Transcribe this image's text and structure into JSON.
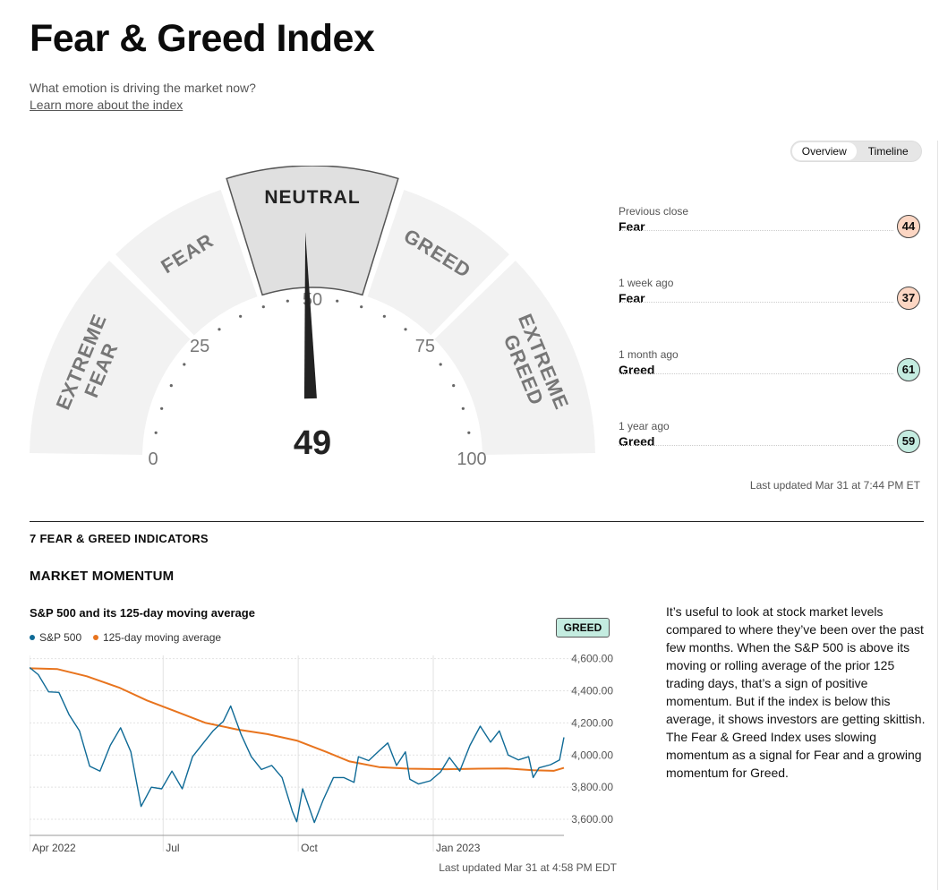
{
  "header": {
    "title": "Fear & Greed Index",
    "subtitle": "What emotion is driving the market now?",
    "learn_link": "Learn more about the index"
  },
  "gauge": {
    "value": 49,
    "scale_min": 0,
    "scale_max": 100,
    "segments": [
      {
        "label": "EXTREME FEAR"
      },
      {
        "label": "FEAR"
      },
      {
        "label": "NEUTRAL",
        "active": true
      },
      {
        "label": "GREED"
      },
      {
        "label": "EXTREME GREED"
      }
    ],
    "ticks": [
      "0",
      "25",
      "50",
      "75",
      "100"
    ]
  },
  "view_toggle": {
    "options": [
      "Overview",
      "Timeline"
    ],
    "selected": "Overview"
  },
  "history": [
    {
      "when": "Previous close",
      "label": "Fear",
      "value": "44",
      "sentiment": "fear"
    },
    {
      "when": "1 week ago",
      "label": "Fear",
      "value": "37",
      "sentiment": "fear"
    },
    {
      "when": "1 month ago",
      "label": "Greed",
      "value": "61",
      "sentiment": "greed"
    },
    {
      "when": "1 year ago",
      "label": "Greed",
      "value": "59",
      "sentiment": "greed"
    }
  ],
  "last_updated": "Last updated Mar 31 at 7:44 PM ET",
  "indicators_title": "7 FEAR & GREED INDICATORS",
  "indicator": {
    "title": "MARKET MOMENTUM",
    "chart_title": "S&P 500 and its 125-day moving average",
    "status": "GREED",
    "last_updated": "Last updated Mar 31 at 4:58 PM EDT",
    "description": "It’s useful to look at stock market levels compared to where they’ve been over the past few months. When the S&P 500 is above its moving or rolling average of the prior 125 trading days, that’s a sign of positive momentum. But if the index is below this average, it shows investors are getting skittish. The Fear & Greed Index uses slowing momentum as a signal for Fear and a growing momentum for Greed."
  },
  "colors": {
    "sp500": "#0f6a96",
    "moving_avg": "#e8741e",
    "fear_badge": "#fcd6c3",
    "greed_badge": "#c4ece0",
    "gauge_band": "#f2f2f2",
    "neutral_band": "#e0e0e0"
  },
  "chart_data": {
    "type": "line",
    "x_ticks": [
      "Apr 2022",
      "Jul",
      "Oct",
      "Jan 2023"
    ],
    "y_ticks": [
      "4,600.00",
      "4,400.00",
      "4,200.00",
      "4,000.00",
      "3,800.00",
      "3,600.00"
    ],
    "ylim": [
      3500,
      4620
    ],
    "x_range": [
      "2022-04-01",
      "2023-03-31"
    ],
    "legend": "top-left",
    "grid": true,
    "series": [
      {
        "name": "S&P 500",
        "points": [
          [
            "2022-04-01",
            4545
          ],
          [
            "2022-04-07",
            4500
          ],
          [
            "2022-04-14",
            4393
          ],
          [
            "2022-04-21",
            4390
          ],
          [
            "2022-04-28",
            4250
          ],
          [
            "2022-05-05",
            4150
          ],
          [
            "2022-05-12",
            3930
          ],
          [
            "2022-05-19",
            3900
          ],
          [
            "2022-05-26",
            4060
          ],
          [
            "2022-06-02",
            4170
          ],
          [
            "2022-06-09",
            4020
          ],
          [
            "2022-06-16",
            3680
          ],
          [
            "2022-06-23",
            3800
          ],
          [
            "2022-06-30",
            3790
          ],
          [
            "2022-07-07",
            3900
          ],
          [
            "2022-07-14",
            3790
          ],
          [
            "2022-07-21",
            3990
          ],
          [
            "2022-07-28",
            4070
          ],
          [
            "2022-08-04",
            4150
          ],
          [
            "2022-08-11",
            4210
          ],
          [
            "2022-08-16",
            4305
          ],
          [
            "2022-08-23",
            4130
          ],
          [
            "2022-08-30",
            3990
          ],
          [
            "2022-09-06",
            3910
          ],
          [
            "2022-09-13",
            3935
          ],
          [
            "2022-09-20",
            3860
          ],
          [
            "2022-09-27",
            3650
          ],
          [
            "2022-09-30",
            3585
          ],
          [
            "2022-10-04",
            3790
          ],
          [
            "2022-10-12",
            3580
          ],
          [
            "2022-10-18",
            3720
          ],
          [
            "2022-10-25",
            3860
          ],
          [
            "2022-11-01",
            3860
          ],
          [
            "2022-11-08",
            3830
          ],
          [
            "2022-11-11",
            3990
          ],
          [
            "2022-11-18",
            3965
          ],
          [
            "2022-11-25",
            4025
          ],
          [
            "2022-12-01",
            4075
          ],
          [
            "2022-12-07",
            3935
          ],
          [
            "2022-12-13",
            4020
          ],
          [
            "2022-12-16",
            3850
          ],
          [
            "2022-12-22",
            3820
          ],
          [
            "2022-12-30",
            3840
          ],
          [
            "2023-01-06",
            3895
          ],
          [
            "2023-01-12",
            3985
          ],
          [
            "2023-01-19",
            3900
          ],
          [
            "2023-01-26",
            4060
          ],
          [
            "2023-02-02",
            4180
          ],
          [
            "2023-02-09",
            4080
          ],
          [
            "2023-02-15",
            4150
          ],
          [
            "2023-02-21",
            4000
          ],
          [
            "2023-02-28",
            3970
          ],
          [
            "2023-03-07",
            3990
          ],
          [
            "2023-03-10",
            3860
          ],
          [
            "2023-03-14",
            3920
          ],
          [
            "2023-03-22",
            3940
          ],
          [
            "2023-03-28",
            3970
          ],
          [
            "2023-03-31",
            4110
          ]
        ]
      },
      {
        "name": "125-day moving average",
        "points": [
          [
            "2022-04-01",
            4540
          ],
          [
            "2022-04-20",
            4535
          ],
          [
            "2022-05-10",
            4490
          ],
          [
            "2022-06-01",
            4420
          ],
          [
            "2022-06-20",
            4340
          ],
          [
            "2022-07-10",
            4270
          ],
          [
            "2022-07-30",
            4200
          ],
          [
            "2022-08-20",
            4160
          ],
          [
            "2022-09-10",
            4130
          ],
          [
            "2022-09-30",
            4090
          ],
          [
            "2022-10-20",
            4020
          ],
          [
            "2022-11-05",
            3960
          ],
          [
            "2022-11-25",
            3925
          ],
          [
            "2022-12-15",
            3915
          ],
          [
            "2023-01-10",
            3912
          ],
          [
            "2023-02-01",
            3915
          ],
          [
            "2023-02-20",
            3917
          ],
          [
            "2023-03-10",
            3905
          ],
          [
            "2023-03-24",
            3902
          ],
          [
            "2023-03-31",
            3920
          ]
        ]
      }
    ]
  }
}
